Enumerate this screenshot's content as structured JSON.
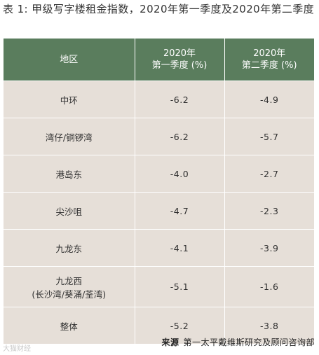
{
  "title": "表 1: 甲级写字楼租金指数，2020年第一季度及2020年第二季度",
  "table": {
    "headers": {
      "region": "地区",
      "q1_line1": "2020年",
      "q1_line2": "第一季度 (%)",
      "q2_line1": "2020年",
      "q2_line2": "第二季度 (%)"
    },
    "rows": [
      {
        "region_line1": "中环",
        "region_line2": "",
        "q1": "-6.2",
        "q2": "-4.9"
      },
      {
        "region_line1": "湾仔/铜锣湾",
        "region_line2": "",
        "q1": "-6.2",
        "q2": "-5.7"
      },
      {
        "region_line1": "港岛东",
        "region_line2": "",
        "q1": "-4.0",
        "q2": "-2.7"
      },
      {
        "region_line1": "尖沙咀",
        "region_line2": "",
        "q1": "-4.7",
        "q2": "-2.3"
      },
      {
        "region_line1": "九龙东",
        "region_line2": "",
        "q1": "-4.1",
        "q2": "-3.9"
      },
      {
        "region_line1": "九龙西",
        "region_line2": "(长沙湾/葵涌/荃湾)",
        "q1": "-5.1",
        "q2": "-1.6"
      },
      {
        "region_line1": "整体",
        "region_line2": "",
        "q1": "-5.2",
        "q2": "-3.8"
      }
    ]
  },
  "source": {
    "label": "来源",
    "text": "第一太平戴维斯研究及顾问咨询部"
  },
  "watermark": "大猫财经"
}
